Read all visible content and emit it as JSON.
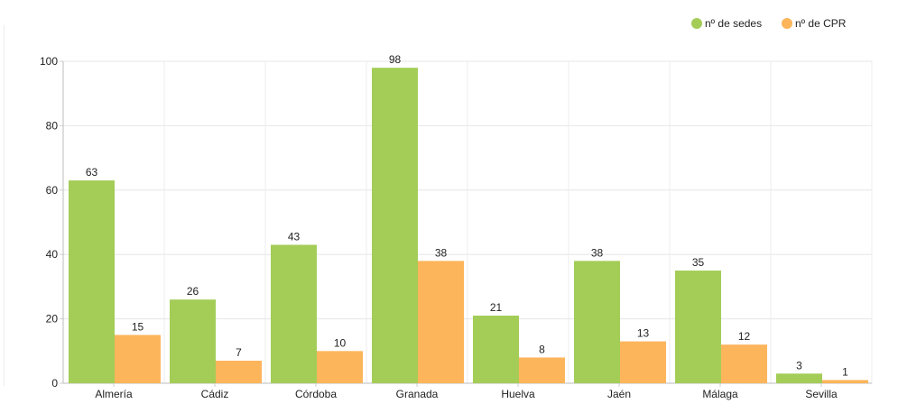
{
  "chart_data": {
    "type": "bar",
    "categories": [
      "Almería",
      "Cádiz",
      "Córdoba",
      "Granada",
      "Huelva",
      "Jaén",
      "Málaga",
      "Sevilla"
    ],
    "series": [
      {
        "name": "nº de sedes",
        "values": [
          63,
          26,
          43,
          98,
          21,
          38,
          35,
          3
        ],
        "color": "#a3cd57"
      },
      {
        "name": "nº de CPR",
        "values": [
          15,
          7,
          10,
          38,
          8,
          13,
          12,
          1
        ],
        "color": "#fdb55c"
      }
    ],
    "ylim": [
      0,
      100
    ],
    "yticks": [
      0,
      20,
      40,
      60,
      80,
      100
    ],
    "grid": true,
    "legend_position": "top-right",
    "title": "",
    "xlabel": "",
    "ylabel": ""
  }
}
